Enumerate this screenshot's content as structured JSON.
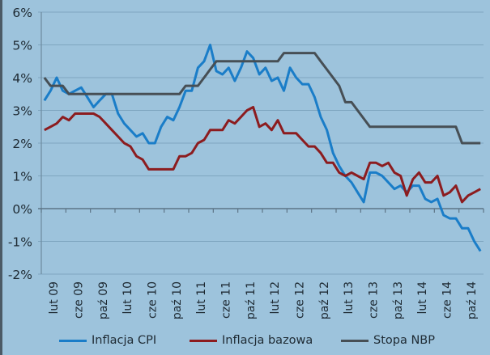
{
  "chart_data": {
    "type": "line",
    "title": "",
    "xlabel": "",
    "ylabel": "",
    "ylim": [
      -2,
      6
    ],
    "y_ticks": [
      "-2%",
      "-1%",
      "0%",
      "1%",
      "2%",
      "3%",
      "4%",
      "5%",
      "6%"
    ],
    "grid": true,
    "legend": "bottom",
    "x_tick_labels": [
      "lut 09",
      "cze 09",
      "paź 09",
      "lut 10",
      "cze 10",
      "paź 10",
      "lut 11",
      "cze 11",
      "paź 11",
      "lut 12",
      "cze 12",
      "paź 12",
      "lut 13",
      "cze 13",
      "paź 13",
      "lut 14",
      "cze 14",
      "paź 14"
    ],
    "x_range": [
      "2009-02",
      "2015-01"
    ],
    "series": [
      {
        "name": "Inflacja CPI",
        "color": "#1a7dc8",
        "values": [
          3.3,
          3.6,
          4.0,
          3.6,
          3.5,
          3.6,
          3.7,
          3.4,
          3.1,
          3.3,
          3.5,
          3.5,
          2.9,
          2.6,
          2.4,
          2.2,
          2.3,
          2.0,
          2.0,
          2.5,
          2.8,
          2.7,
          3.1,
          3.6,
          3.6,
          4.3,
          4.5,
          5.0,
          4.2,
          4.1,
          4.3,
          3.9,
          4.3,
          4.8,
          4.6,
          4.1,
          4.3,
          3.9,
          4.0,
          3.6,
          4.3,
          4.0,
          3.8,
          3.8,
          3.4,
          2.8,
          2.4,
          1.7,
          1.3,
          1.0,
          0.8,
          0.5,
          0.2,
          1.1,
          1.1,
          1.0,
          0.8,
          0.6,
          0.7,
          0.5,
          0.7,
          0.7,
          0.3,
          0.2,
          0.3,
          -0.2,
          -0.3,
          -0.3,
          -0.6,
          -0.6,
          -1.0,
          -1.3
        ]
      },
      {
        "name": "Inflacja bazowa",
        "color": "#8c1c1f",
        "values": [
          2.4,
          2.5,
          2.6,
          2.8,
          2.7,
          2.9,
          2.9,
          2.9,
          2.9,
          2.8,
          2.6,
          2.4,
          2.2,
          2.0,
          1.9,
          1.6,
          1.5,
          1.2,
          1.2,
          1.2,
          1.2,
          1.2,
          1.6,
          1.6,
          1.7,
          2.0,
          2.1,
          2.4,
          2.4,
          2.4,
          2.7,
          2.6,
          2.8,
          3.0,
          3.1,
          2.5,
          2.6,
          2.4,
          2.7,
          2.3,
          2.3,
          2.3,
          2.1,
          1.9,
          1.9,
          1.7,
          1.4,
          1.4,
          1.1,
          1.0,
          1.1,
          1.0,
          0.9,
          1.4,
          1.4,
          1.3,
          1.4,
          1.1,
          1.0,
          0.4,
          0.9,
          1.1,
          0.8,
          0.8,
          1.0,
          0.4,
          0.5,
          0.7,
          0.2,
          0.4,
          0.5,
          0.6
        ]
      },
      {
        "name": "Stopa NBP",
        "color": "#474f55",
        "values": [
          4.0,
          3.75,
          3.75,
          3.75,
          3.5,
          3.5,
          3.5,
          3.5,
          3.5,
          3.5,
          3.5,
          3.5,
          3.5,
          3.5,
          3.5,
          3.5,
          3.5,
          3.5,
          3.5,
          3.5,
          3.5,
          3.5,
          3.5,
          3.75,
          3.75,
          3.75,
          4.0,
          4.25,
          4.5,
          4.5,
          4.5,
          4.5,
          4.5,
          4.5,
          4.5,
          4.5,
          4.5,
          4.5,
          4.5,
          4.75,
          4.75,
          4.75,
          4.75,
          4.75,
          4.75,
          4.5,
          4.25,
          4.0,
          3.75,
          3.25,
          3.25,
          3.0,
          2.75,
          2.5,
          2.5,
          2.5,
          2.5,
          2.5,
          2.5,
          2.5,
          2.5,
          2.5,
          2.5,
          2.5,
          2.5,
          2.5,
          2.5,
          2.5,
          2.0,
          2.0,
          2.0,
          2.0
        ]
      }
    ]
  }
}
